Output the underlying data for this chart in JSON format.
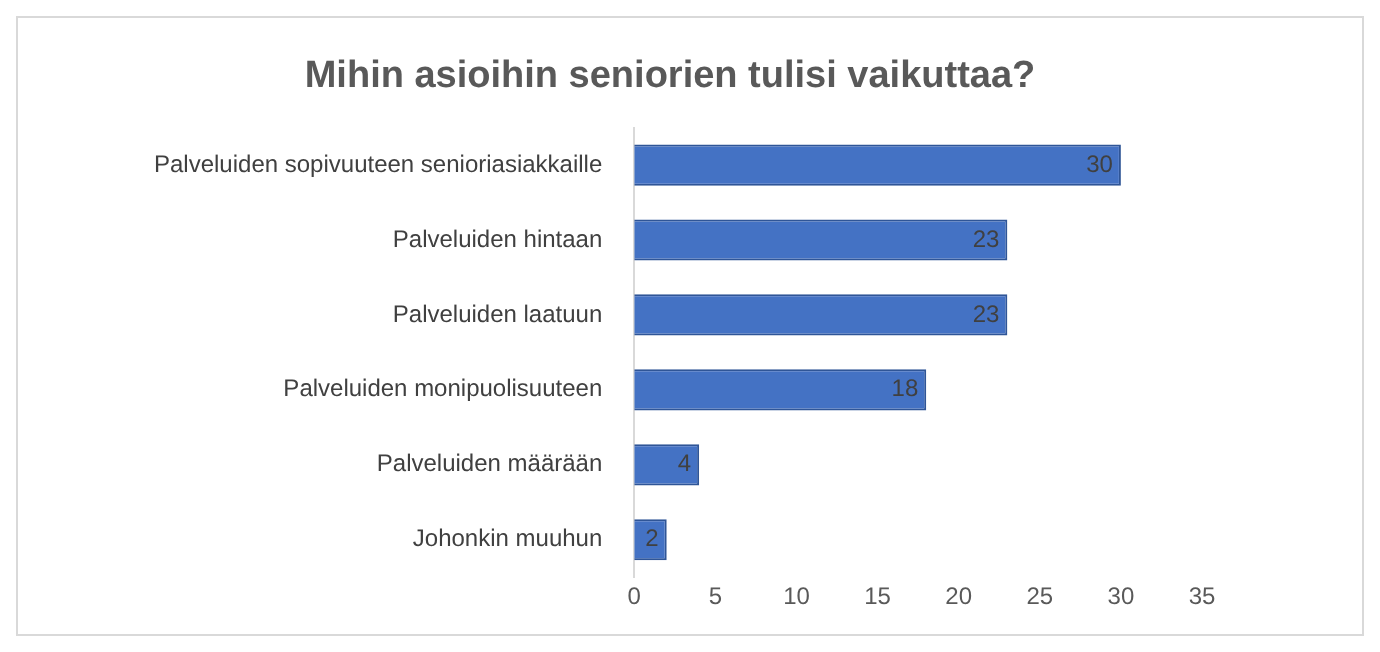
{
  "chart_data": {
    "type": "bar",
    "orientation": "horizontal",
    "title": "Mihin asioihin seniorien tulisi vaikuttaa?",
    "categories": [
      "Palveluiden sopivuuteen senioriasiakkaille",
      "Palveluiden hintaan",
      "Palveluiden laatuun",
      "Palveluiden monipuolisuuteen",
      "Palveluiden määrään",
      "Johonkin muuhun"
    ],
    "values": [
      30,
      23,
      23,
      18,
      4,
      2
    ],
    "color": "#4472c4",
    "xlim": [
      0,
      35
    ],
    "xticks": [
      0,
      5,
      10,
      15,
      20,
      25,
      30,
      35
    ],
    "grid": false,
    "legend": false,
    "data_labels": true
  }
}
